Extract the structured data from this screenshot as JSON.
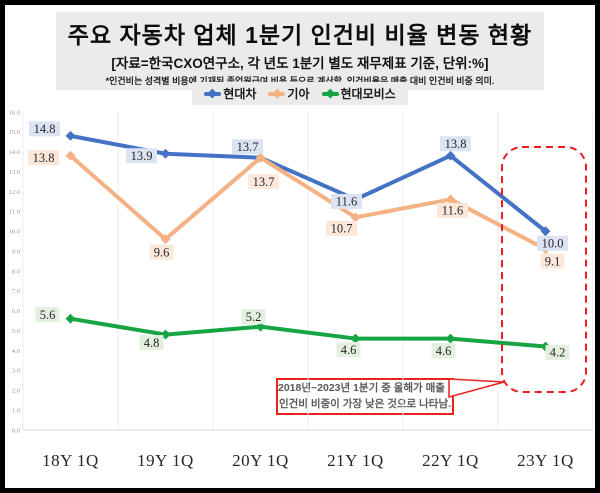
{
  "header": {
    "title": "주요 자동차 업체 1분기 인건비 비율 변동 현황",
    "subtitle": "[자료=한국CXO연구소, 각 년도 1분기 별도 재무제표 기준, 단위:%]",
    "footnote": "*인건비는 성격별 비용에 기재된 종업원급여 비용 등으로 계산함. 인건비율은 매출 대비 인건비 비중 의미."
  },
  "chart_data": {
    "type": "line",
    "title": "주요 자동차 업체 1분기 인건비 비율 변동 현황",
    "categories": [
      "18Y 1Q",
      "19Y 1Q",
      "20Y 1Q",
      "21Y 1Q",
      "22Y 1Q",
      "23Y 1Q"
    ],
    "series": [
      {
        "id": "hyundai",
        "name": "현대차",
        "color": "#4472c4",
        "label_bg": "#dce4f3",
        "values": [
          14.8,
          13.9,
          13.7,
          11.6,
          13.8,
          10.0
        ]
      },
      {
        "id": "kia",
        "name": "기아",
        "color": "#f4b183",
        "label_bg": "#fce8da",
        "values": [
          13.8,
          9.6,
          13.7,
          10.7,
          11.6,
          9.1
        ]
      },
      {
        "id": "hyundai-mobis",
        "name": "현대모비스",
        "color": "#17a543",
        "label_bg": "#e4f0df",
        "values": [
          5.6,
          4.8,
          5.2,
          4.6,
          4.6,
          4.2
        ]
      }
    ],
    "ylim": [
      0,
      16
    ],
    "ytick_step": 1.0,
    "ytick_format": "one-decimal",
    "xlabel": "",
    "ylabel": "",
    "grid": "vertical-only",
    "legend_position": "top",
    "highlight": {
      "category": "23Y 1Q",
      "style": "red-dashed-rounded-rect",
      "color": "#ec1c24"
    },
    "annotation": {
      "line1": "2018년~2023년 1분기 중 올해가 매출 대비",
      "line2": "인건비 비중이 가장 낮은 것으로 나타남.",
      "border_color": "#e8231f"
    }
  },
  "colors": {
    "frame_border": "#000000",
    "header_bg": "#ebebeb",
    "gridline": "#ececec",
    "baseline": "#d9d9d9",
    "ytick_text": "#999999",
    "xtick_text": "#262626"
  }
}
